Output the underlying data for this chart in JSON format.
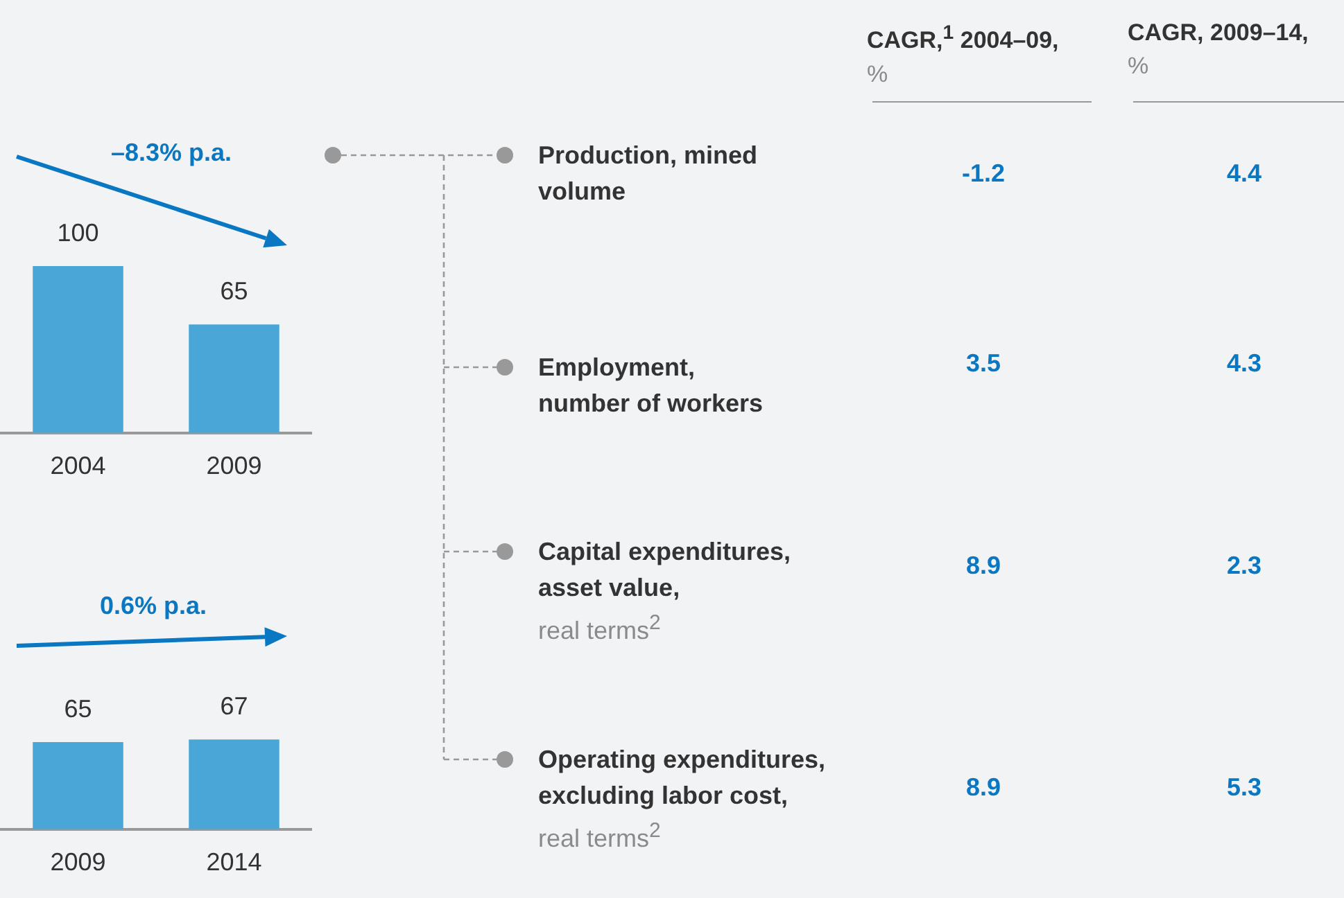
{
  "chart_data": [
    {
      "type": "bar",
      "categories": [
        "2004",
        "2009"
      ],
      "values": [
        100,
        65
      ],
      "color": "#4aa6d6",
      "data_labels": true,
      "annotations": [
        "–8.3% p.a."
      ]
    },
    {
      "type": "bar",
      "categories": [
        "2009",
        "2014"
      ],
      "values": [
        65,
        67
      ],
      "color": "#4aa6d6",
      "data_labels": true,
      "annotations": [
        "0.6% p.a."
      ]
    },
    {
      "type": "other",
      "data_labels": true,
      "categories": [
        "Production, mined\nvolume",
        "Employment,\nnumber of workers",
        "Capital expenditures,\nasset value,\nreal terms$^{2}$",
        "Operating expenditures,\nexcluding labor cost,\nreal terms$^{2}$"
      ],
      "series": [
        {
          "name": "CAGR,$^{1}$ 2004–09,\n%",
          "values": [
            -1.2,
            3.5,
            8.9,
            8.9
          ]
        },
        {
          "name": "CAGR, 2009–14,\n%",
          "values": [
            4.4,
            4.3,
            2.3,
            5.3
          ]
        }
      ]
    }
  ]
}
